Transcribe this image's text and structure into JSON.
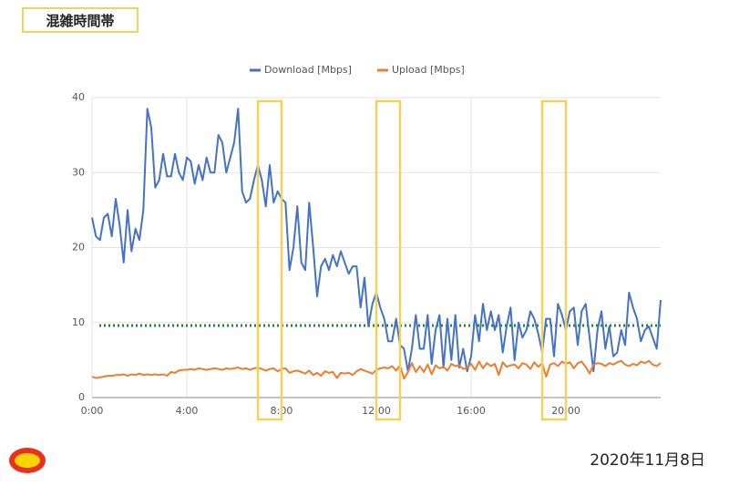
{
  "header": "混雑時間帯",
  "date": "2020年11月8日",
  "chart_data": {
    "type": "line",
    "x": [
      0,
      10,
      20,
      30,
      40,
      50,
      60,
      70,
      80,
      90,
      100,
      110,
      120,
      130,
      140,
      150,
      160,
      170,
      180,
      190,
      200,
      210,
      220,
      230,
      240,
      250,
      260,
      270,
      280,
      290,
      300,
      310,
      320,
      330,
      340,
      350,
      360,
      370,
      380,
      390,
      400,
      410,
      420,
      430,
      440,
      450,
      460,
      470,
      480,
      490,
      500,
      510,
      520,
      530,
      540,
      550,
      560,
      570,
      580,
      590,
      600,
      610,
      620,
      630,
      640,
      650,
      660,
      670,
      680,
      690,
      700,
      710,
      720,
      730,
      740,
      750,
      760,
      770,
      780,
      790,
      800,
      810,
      820,
      830,
      840,
      850,
      860,
      870,
      880,
      890,
      900,
      910,
      920,
      930,
      940,
      950,
      960,
      970,
      980,
      990,
      1000,
      1010,
      1020,
      1030,
      1040,
      1050,
      1060,
      1070,
      1080,
      1090,
      1100,
      1110,
      1120,
      1130,
      1140,
      1150,
      1160,
      1170,
      1180,
      1190,
      1200,
      1210,
      1220,
      1230,
      1240,
      1250,
      1260,
      1270,
      1280,
      1290,
      1300,
      1310,
      1320,
      1330,
      1340,
      1350,
      1360,
      1370,
      1380,
      1390,
      1400,
      1410,
      1420,
      1430,
      1440
    ],
    "series": [
      {
        "name": "Download [Mbps]",
        "color": "#4472c4",
        "values": [
          24,
          21.5,
          21,
          24,
          24.5,
          21.5,
          26.5,
          23,
          18,
          25,
          19.5,
          22.5,
          21,
          25,
          38.5,
          36,
          28,
          29,
          32.5,
          29.5,
          29.5,
          32.5,
          30,
          29,
          32,
          31.5,
          28.5,
          31,
          29,
          32,
          30,
          30,
          35,
          34,
          30,
          32,
          34,
          38.5,
          27.5,
          26,
          26.5,
          29,
          31,
          29,
          25.5,
          31,
          26,
          27.5,
          26.5,
          26,
          17,
          20,
          25.5,
          18,
          17,
          26,
          20,
          13.5,
          17.5,
          18.5,
          17,
          19,
          17.5,
          19.5,
          18,
          16.5,
          17.5,
          17.5,
          12,
          16,
          9.5,
          12.5,
          14,
          12,
          10.5,
          7.5,
          7.5,
          10.5,
          7,
          6.5,
          3.5,
          6.5,
          11,
          6.5,
          6.5,
          11,
          4.5,
          9,
          11,
          4,
          10.5,
          5,
          11,
          4,
          6.5,
          3.5,
          5.5,
          11,
          7.5,
          12.5,
          9,
          11.5,
          9,
          11,
          6,
          9.5,
          12,
          5,
          10,
          8,
          9,
          11.5,
          10.5,
          8.5,
          6,
          10.5,
          10.5,
          5.5,
          12.5,
          11,
          9,
          11.5,
          12,
          7,
          11.5,
          12.5,
          8,
          3.5,
          9,
          11.5,
          6.5,
          9.5,
          5.5,
          6,
          9,
          7,
          14,
          12,
          10.5,
          7.5,
          9,
          9.5,
          8,
          6.5,
          13
        ]
      },
      {
        "name": "Upload [Mbps]",
        "color": "#ed7d31",
        "values": [
          2.8,
          2.6,
          2.7,
          2.8,
          2.9,
          2.9,
          3.0,
          3.0,
          3.1,
          2.9,
          3.1,
          3.0,
          3.2,
          3.0,
          3.1,
          3.0,
          3.1,
          3.0,
          3.1,
          2.9,
          3.4,
          3.3,
          3.6,
          3.7,
          3.7,
          3.8,
          3.7,
          3.9,
          3.8,
          3.7,
          3.8,
          3.9,
          3.8,
          3.7,
          3.9,
          3.8,
          3.9,
          4.0,
          3.8,
          3.9,
          3.7,
          3.9,
          4.0,
          3.8,
          3.6,
          3.8,
          3.9,
          3.5,
          3.8,
          3.9,
          3.3,
          3.5,
          3.6,
          3.4,
          3.2,
          3.6,
          3.0,
          3.3,
          2.9,
          3.5,
          3.3,
          3.4,
          2.6,
          3.3,
          3.2,
          3.3,
          3.0,
          3.5,
          3.8,
          3.6,
          3.4,
          3.2,
          3.7,
          3.9,
          4.0,
          3.9,
          4.2,
          3.6,
          4.3,
          2.5,
          3.4,
          4.6,
          3.4,
          4.2,
          3.4,
          4.4,
          3.1,
          4.3,
          3.9,
          4.1,
          3.6,
          4.5,
          4.2,
          4.3,
          3.8,
          4.0,
          4.5,
          3.7,
          4.8,
          3.9,
          4.6,
          4.2,
          4.5,
          3.0,
          4.7,
          4.1,
          4.3,
          4.4,
          3.9,
          4.6,
          4.4,
          3.8,
          4.7,
          4.1,
          4.6,
          2.8,
          4.4,
          4.6,
          4.2,
          4.8,
          4.5,
          4.7,
          3.9,
          4.6,
          4.8,
          4.1,
          3.2,
          4.4,
          4.6,
          4.5,
          4.2,
          4.6,
          4.4,
          4.7,
          4.9,
          4.4,
          4.2,
          4.5,
          4.3,
          4.8,
          4.6,
          4.9,
          4.4,
          4.2,
          4.6
        ]
      }
    ],
    "xlim": [
      0,
      1440
    ],
    "xticks": [
      {
        "value": 0,
        "label": "0:00"
      },
      {
        "value": 240,
        "label": "4:00"
      },
      {
        "value": 480,
        "label": "8:00"
      },
      {
        "value": 720,
        "label": "12:00"
      },
      {
        "value": 960,
        "label": "16:00"
      },
      {
        "value": 1200,
        "label": "20:00"
      }
    ],
    "ylim": [
      0,
      40
    ],
    "yticks": [
      0,
      10,
      20,
      30,
      40
    ],
    "grid": true,
    "reference_line": {
      "value": 9.6,
      "color": "#1e8a2e"
    },
    "highlights": {
      "color": "#f2d25a",
      "ranges": [
        [
          420,
          480
        ],
        [
          720,
          780
        ],
        [
          1140,
          1200
        ]
      ]
    },
    "legend": "top"
  }
}
